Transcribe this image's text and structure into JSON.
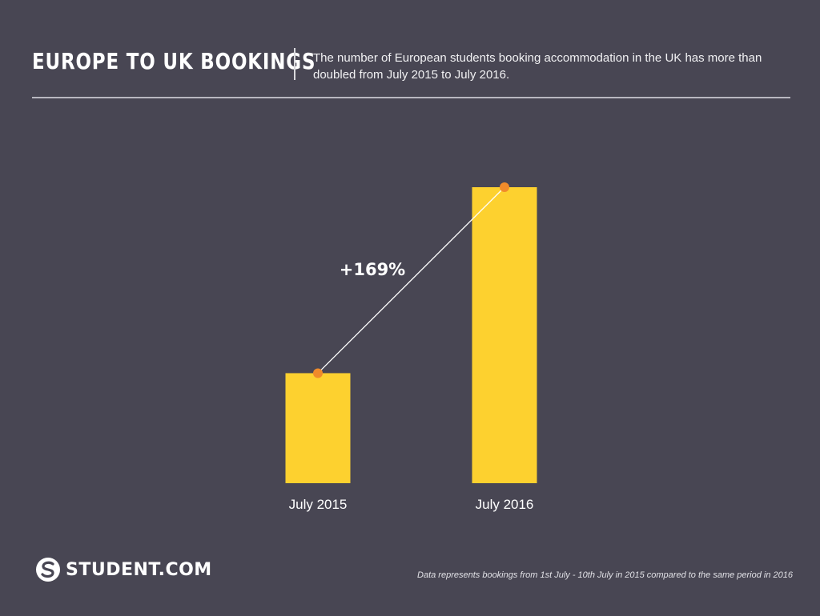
{
  "header": {
    "title": "EUROPE TO UK BOOKINGS",
    "subtitle": "The number of European students booking accommodation in the UK has more than doubled from July 2015 to July 2016."
  },
  "chart_data": {
    "type": "bar",
    "title": "EUROPE TO UK BOOKINGS",
    "xlabel": "",
    "ylabel": "",
    "categories": [
      "July 2015",
      "July 2016"
    ],
    "values": [
      100,
      269
    ],
    "ylim": [
      0,
      269
    ],
    "grid": false,
    "annotation": "+169%",
    "colors": {
      "bar": "#fdd12f",
      "marker": "#f08b2a",
      "connector": "#ffffff"
    }
  },
  "footer": {
    "brand": "STUDENT.COM",
    "note": "Data represents bookings from 1st July - 10th July in 2015 compared to the same period in 2016"
  },
  "icons": {
    "brand_logo": "student-logo-icon"
  }
}
